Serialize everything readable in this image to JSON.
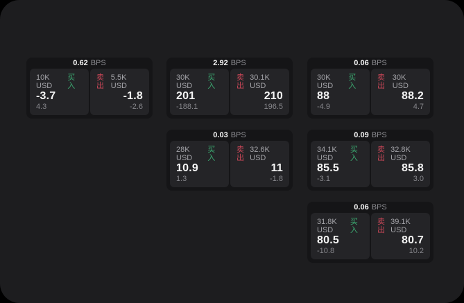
{
  "labels": {
    "bps": "BPS",
    "buy": "买入",
    "sell": "卖出"
  },
  "colors": {
    "page_bg": "#000000",
    "container_bg": "#1d1d1f",
    "card_bg": "#151517",
    "panel_bg": "#242427",
    "buy_green": "#3cab72",
    "sell_red": "#cc4758",
    "text_primary": "#f5f5f5",
    "text_secondary": "#a3a3a8",
    "text_dim": "#86868b"
  },
  "cards": [
    {
      "bps": "0.62",
      "row": 1,
      "col": 1,
      "buy": {
        "amount": "10K USD",
        "price": "-3.7",
        "delta": "4.3"
      },
      "sell": {
        "amount": "5.5K USD",
        "price": "-1.8",
        "delta": "-2.6"
      }
    },
    {
      "bps": "2.92",
      "row": 1,
      "col": 2,
      "buy": {
        "amount": "30K USD",
        "price": "201",
        "delta": "-188.1"
      },
      "sell": {
        "amount": "30.1K USD",
        "price": "210",
        "delta": "196.5"
      }
    },
    {
      "bps": "0.06",
      "row": 1,
      "col": 3,
      "buy": {
        "amount": "30K USD",
        "price": "88",
        "delta": "-4.9"
      },
      "sell": {
        "amount": "30K USD",
        "price": "88.2",
        "delta": "4.7"
      }
    },
    {
      "bps": "0.03",
      "row": 2,
      "col": 2,
      "buy": {
        "amount": "28K USD",
        "price": "10.9",
        "delta": "1.3"
      },
      "sell": {
        "amount": "32.6K USD",
        "price": "11",
        "delta": "-1.8"
      }
    },
    {
      "bps": "0.09",
      "row": 2,
      "col": 3,
      "buy": {
        "amount": "34.1K USD",
        "price": "85.5",
        "delta": "-3.1"
      },
      "sell": {
        "amount": "32.8K USD",
        "price": "85.8",
        "delta": "3.0"
      }
    },
    {
      "bps": "0.06",
      "row": 3,
      "col": 3,
      "buy": {
        "amount": "31.8K USD",
        "price": "80.5",
        "delta": "-10.8"
      },
      "sell": {
        "amount": "39.1K USD",
        "price": "80.7",
        "delta": "10.2"
      }
    }
  ],
  "layout": {
    "col_left": {
      "1": 38,
      "2": 240,
      "3": 443
    },
    "row_top": {
      "1": 83,
      "2": 187,
      "3": 291
    }
  }
}
